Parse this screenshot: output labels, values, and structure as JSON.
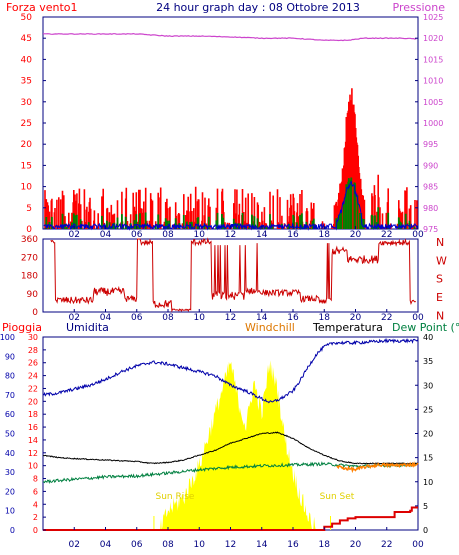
{
  "chart_data": [
    {
      "type": "line",
      "title": "24 hour graph day : 08 Ottobre 2013",
      "left_axis_label": "Forza vento1",
      "right_axis_label": "Pressione",
      "x_ticks": [
        "02",
        "04",
        "06",
        "08",
        "10",
        "12",
        "14",
        "16",
        "18",
        "20",
        "22",
        "00"
      ],
      "ylim_left": [
        0,
        50
      ],
      "y_ticks_left": [
        "0",
        "5",
        "10",
        "15",
        "20",
        "25",
        "30",
        "35",
        "40",
        "45",
        "50"
      ],
      "ylim_right": [
        975,
        1025
      ],
      "y_ticks_right": [
        "975",
        "980",
        "985",
        "990",
        "995",
        "1000",
        "1005",
        "1010",
        "1015",
        "1020",
        "1025"
      ],
      "colors": {
        "wind_gust": "#ff0000",
        "wind_avg": "#0000cc",
        "wind_low": "#008000",
        "pressure": "#cc44cc",
        "title": "#000080",
        "frame": "#000080"
      },
      "pressure": {
        "x": [
          0,
          2,
          4,
          6,
          8,
          10,
          12,
          14,
          16,
          18,
          19.5,
          20.5,
          22,
          23,
          24
        ],
        "y": [
          1021.0,
          1021.0,
          1021.0,
          1021.0,
          1020.5,
          1020.5,
          1020.3,
          1020.0,
          1020.0,
          1019.5,
          1019.5,
          1020.0,
          1020.0,
          1020.0,
          1019.8
        ]
      },
      "wind_peak": {
        "x": 19.7,
        "y": 29
      }
    },
    {
      "type": "line",
      "title": "",
      "y_ticks": [
        "0",
        "90",
        "180",
        "270",
        "360"
      ],
      "ylim": [
        0,
        360
      ],
      "compass_labels": [
        "N",
        "W",
        "S",
        "E",
        "N"
      ],
      "colors": {
        "direction": "#cc0000",
        "compass": "#cc0000"
      }
    },
    {
      "type": "line",
      "title": "",
      "legend": {
        "rain": "Pioggia",
        "humidity": "Umidita",
        "windchill": "Windchill",
        "temperature": "Temperatura",
        "dewpoint": "Dew Point (°C"
      },
      "y_ticks_humidity": [
        "0",
        "10",
        "20",
        "30",
        "40",
        "50",
        "60",
        "70",
        "80",
        "90",
        "100"
      ],
      "y_ticks_rain": [
        "0",
        "2",
        "4",
        "6",
        "8",
        "10",
        "12",
        "14",
        "16",
        "18",
        "20",
        "22",
        "24",
        "26",
        "28",
        "30"
      ],
      "y_ticks_temp": [
        "0",
        "5",
        "10",
        "15",
        "20",
        "25",
        "30",
        "35",
        "40"
      ],
      "ylim_humidity": [
        0,
        100
      ],
      "ylim_temp": [
        0,
        40
      ],
      "annotations": {
        "sunrise": "Sun Rise",
        "sunset": "Sun Set"
      },
      "humidity": {
        "x": [
          0,
          1,
          2,
          3,
          4,
          5,
          6,
          7,
          8,
          9,
          10,
          11,
          12,
          13,
          14,
          14.6,
          15.2,
          16,
          16.5,
          17,
          17.5,
          18,
          18.6,
          20,
          22,
          24
        ],
        "y": [
          70,
          71,
          73,
          75,
          78,
          82,
          85,
          87,
          86,
          84,
          82,
          80,
          75,
          72,
          68,
          66,
          68,
          72,
          78,
          85,
          91,
          95,
          97,
          97,
          98,
          98
        ]
      },
      "temperature": {
        "x": [
          0,
          1,
          2,
          4,
          6,
          7,
          8,
          9,
          10,
          11,
          12,
          13,
          14,
          15,
          16,
          17,
          18,
          19,
          20,
          22,
          24
        ],
        "y": [
          15.5,
          15,
          14.8,
          14.5,
          14.2,
          13.8,
          14,
          14.5,
          15.5,
          16.5,
          18,
          19,
          20,
          20.2,
          19,
          17,
          15.5,
          14.3,
          13.8,
          13.8,
          13.8
        ]
      },
      "dewpoint": {
        "x": [
          0,
          2,
          4,
          6,
          8,
          10,
          12,
          14,
          16,
          18,
          20,
          22,
          24
        ],
        "y": [
          10,
          10.5,
          11,
          11.2,
          11.8,
          12.5,
          13,
          13.3,
          13.5,
          13.7,
          13.2,
          13.4,
          13.5
        ]
      },
      "windchill": {
        "x": [
          18.8,
          19.3,
          20,
          20.5,
          21.5,
          22.5,
          24
        ],
        "y": [
          13.2,
          12.8,
          12.5,
          13,
          13.5,
          13.4,
          13.6
        ]
      },
      "rain": {
        "x": [
          0,
          17,
          18,
          18.5,
          19,
          19.5,
          20,
          21,
          22.5,
          23.5,
          23.6,
          24
        ],
        "y": [
          0,
          0,
          0.5,
          1,
          1.5,
          1.8,
          2,
          2,
          2.8,
          3,
          3.5,
          3.5
        ]
      },
      "solar": {
        "x": [
          0,
          7.5,
          8,
          9,
          10,
          10.5,
          11,
          11.5,
          12,
          12.5,
          13,
          13.5,
          14,
          14.5,
          15,
          15.5,
          16,
          16.5,
          17,
          17.5,
          24
        ],
        "y": [
          0,
          0,
          3,
          5,
          10,
          14,
          18,
          22,
          26,
          20,
          16,
          23,
          18,
          26,
          22,
          14,
          9,
          5,
          2,
          0,
          0
        ]
      },
      "colors": {
        "humidity": "#0000aa",
        "temperature": "#000000",
        "dewpoint": "#008040",
        "windchill": "#ff8000",
        "rain": "#dd0000",
        "solar": "#ffff00",
        "legend_rain": "#ff0000",
        "legend_humidity": "#000080",
        "legend_windchill": "#dd7700",
        "legend_temp": "#000000",
        "legend_dew": "#008040"
      }
    }
  ]
}
